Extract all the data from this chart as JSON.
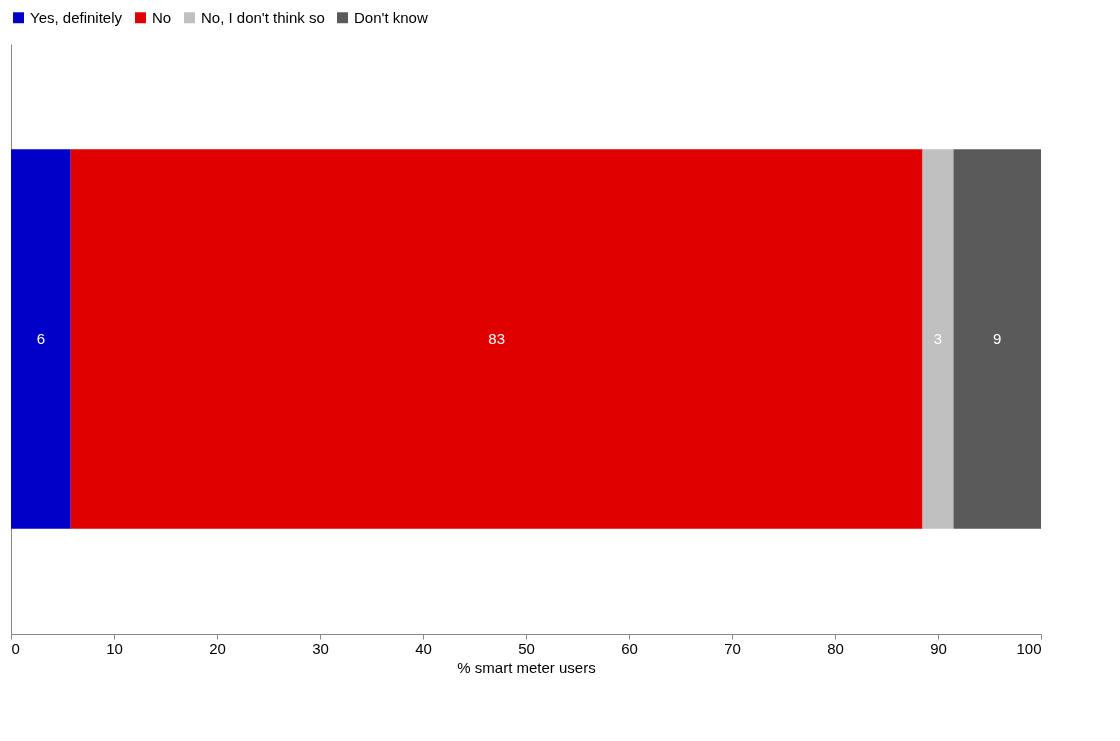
{
  "chart_data": {
    "type": "bar",
    "orientation": "horizontal",
    "stacked": true,
    "categories": [
      null
    ],
    "series": [
      {
        "name": "Yes, definitely",
        "color": "#0000c8",
        "values": [
          5.8
        ],
        "value_labels": [
          "6"
        ]
      },
      {
        "name": "No",
        "color": "#e00000",
        "values": [
          82.7
        ],
        "value_labels": [
          "83"
        ]
      },
      {
        "name": "No, I don't think so",
        "color": "#c0c0c0",
        "values": [
          3.0
        ],
        "value_labels": [
          "3"
        ]
      },
      {
        "name": "Don't know",
        "color": "#5a5a5a",
        "values": [
          8.5
        ],
        "value_labels": [
          "9"
        ]
      }
    ],
    "xlabel": "% smart meter users",
    "xlim": [
      0,
      100
    ],
    "xticks": [
      0,
      10,
      20,
      30,
      40,
      50,
      60,
      70,
      80,
      90,
      100
    ],
    "legend": "top"
  }
}
